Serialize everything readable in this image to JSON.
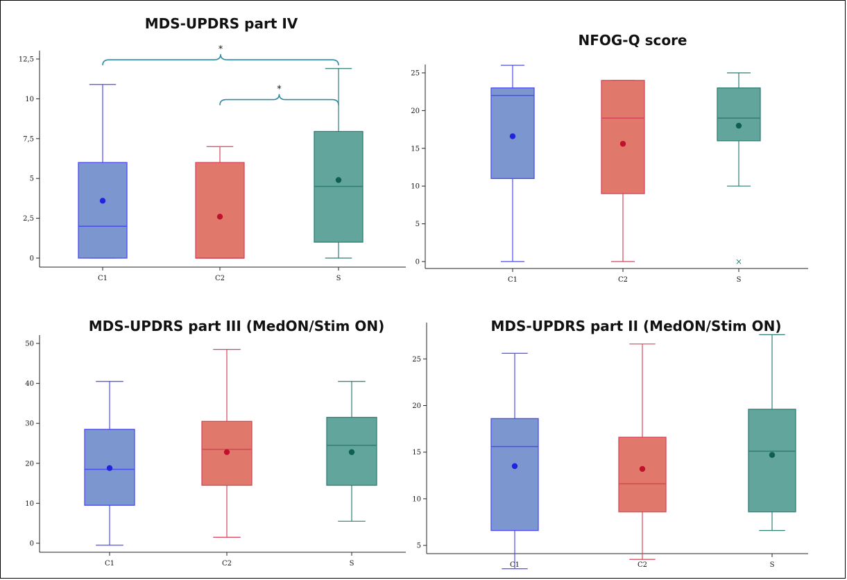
{
  "colors": {
    "C1": {
      "fill": "#7c97d0",
      "stroke": "#4a4af0",
      "point": "#2222e0"
    },
    "C2": {
      "fill": "#e0796b",
      "stroke": "#d8445a",
      "point": "#c0102c"
    },
    "S": {
      "fill": "#62a59d",
      "stroke": "#2f7d73",
      "point": "#0e5e52"
    },
    "bracket": "#2d8aa3"
  },
  "chart_data": [
    {
      "type": "box",
      "title": "MDS-UPDRS part IV",
      "categories": [
        "C1",
        "C2",
        "S"
      ],
      "ylim": [
        0,
        12.5
      ],
      "yticks": [
        0,
        2.5,
        5,
        7.5,
        10,
        12.5
      ],
      "ytick_labels": [
        "0",
        "2,5",
        "5",
        "7,5",
        "10",
        "12,5"
      ],
      "boxes": [
        {
          "name": "C1",
          "min": 0,
          "q1": 0,
          "median": 2,
          "q3": 6,
          "max": 10.9,
          "mean": 3.6
        },
        {
          "name": "C2",
          "min": 0,
          "q1": 0,
          "median": 0,
          "q3": 6,
          "max": 7,
          "mean": 2.6
        },
        {
          "name": "S",
          "min": 0,
          "q1": 1,
          "median": 4.5,
          "q3": 7.95,
          "max": 11.9,
          "mean": 4.9
        }
      ],
      "outliers": [],
      "annotations": [
        {
          "from": "C1",
          "to": "S",
          "y": 12.1,
          "label": "*"
        },
        {
          "from": "C2",
          "to": "S",
          "y": 9.6,
          "label": "*"
        }
      ]
    },
    {
      "type": "box",
      "title": "NFOG-Q score",
      "categories": [
        "C1",
        "C2",
        "S"
      ],
      "ylim": [
        0,
        25
      ],
      "yticks": [
        0,
        5,
        10,
        15,
        20,
        25
      ],
      "ytick_labels": [
        "0",
        "5",
        "10",
        "15",
        "20",
        "25"
      ],
      "boxes": [
        {
          "name": "C1",
          "min": 0,
          "q1": 11,
          "median": 22,
          "q3": 23,
          "max": 26,
          "mean": 16.6
        },
        {
          "name": "C2",
          "min": 0,
          "q1": 9,
          "median": 19,
          "q3": 24,
          "max": 24,
          "mean": 15.6
        },
        {
          "name": "S",
          "min": 10,
          "q1": 16,
          "median": 19,
          "q3": 23,
          "max": 25,
          "mean": 18
        }
      ],
      "outliers": [
        {
          "name": "S",
          "value": 0,
          "marker": "×"
        }
      ],
      "annotations": []
    },
    {
      "type": "box",
      "title": "MDS-UPDRS part III (MedON/Stim ON)",
      "categories": [
        "C1",
        "C2",
        "S"
      ],
      "ylim": [
        0,
        50
      ],
      "yticks": [
        0,
        10,
        20,
        30,
        40,
        50
      ],
      "ytick_labels": [
        "0",
        "10",
        "20",
        "30",
        "40",
        "50"
      ],
      "boxes": [
        {
          "name": "C1",
          "min": -0.5,
          "q1": 9.5,
          "median": 18.5,
          "q3": 28.5,
          "max": 40.5,
          "mean": 18.8
        },
        {
          "name": "C2",
          "min": 1.5,
          "q1": 14.5,
          "median": 23.5,
          "q3": 30.5,
          "max": 48.5,
          "mean": 22.8
        },
        {
          "name": "S",
          "min": 5.5,
          "q1": 14.5,
          "median": 24.5,
          "q3": 31.5,
          "max": 40.5,
          "mean": 22.8
        }
      ],
      "outliers": [],
      "annotations": []
    },
    {
      "type": "box",
      "title": "MDS-UPDRS part II (MedON/Stim ON)",
      "categories": [
        "C1",
        "C2",
        "S"
      ],
      "ylim": [
        3,
        28
      ],
      "yticks": [
        5,
        10,
        15,
        20,
        25
      ],
      "ytick_labels": [
        "5",
        "10",
        "15",
        "20",
        "25"
      ],
      "boxes": [
        {
          "name": "C1",
          "min": 2.5,
          "q1": 6.6,
          "median": 15.6,
          "q3": 18.6,
          "max": 25.6,
          "mean": 13.5
        },
        {
          "name": "C2",
          "min": 3.5,
          "q1": 8.6,
          "median": 11.6,
          "q3": 16.6,
          "max": 26.6,
          "mean": 13.2
        },
        {
          "name": "S",
          "min": 6.6,
          "q1": 8.6,
          "median": 15.1,
          "q3": 19.6,
          "max": 27.6,
          "mean": 14.7
        }
      ],
      "outliers": [],
      "annotations": []
    }
  ]
}
